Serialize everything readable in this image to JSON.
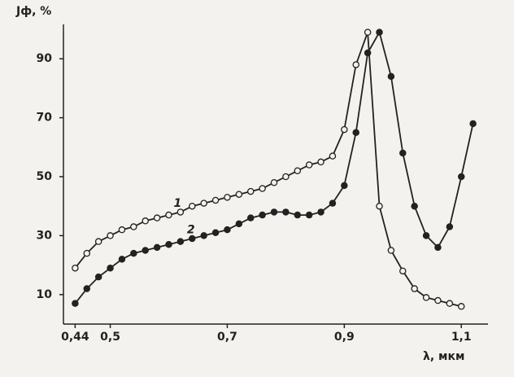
{
  "chart_data": {
    "type": "line",
    "y_label": "Jф, %",
    "x_label": "λ, мкм",
    "x": [
      0.44,
      0.46,
      0.48,
      0.5,
      0.52,
      0.54,
      0.56,
      0.58,
      0.6,
      0.62,
      0.64,
      0.66,
      0.68,
      0.7,
      0.72,
      0.74,
      0.76,
      0.78,
      0.8,
      0.82,
      0.84,
      0.86,
      0.88,
      0.9,
      0.92,
      0.94,
      0.96,
      0.98,
      1.0,
      1.02,
      1.04,
      1.06,
      1.08,
      1.1,
      1.12
    ],
    "series": [
      {
        "name": "1",
        "color": "#222222",
        "marker_fill": "#f4f2ee",
        "values": [
          19,
          24,
          28,
          30,
          32,
          33,
          35,
          36,
          37,
          38,
          40,
          41,
          42,
          43,
          44,
          45,
          46,
          48,
          50,
          52,
          54,
          55,
          57,
          66,
          88,
          99,
          40,
          25,
          18,
          12,
          9,
          8,
          7,
          6,
          null
        ]
      },
      {
        "name": "2",
        "color": "#222222",
        "marker_fill": "#222222",
        "values": [
          7,
          12,
          16,
          19,
          22,
          24,
          25,
          26,
          27,
          28,
          29,
          30,
          31,
          32,
          34,
          36,
          37,
          38,
          38,
          37,
          37,
          38,
          41,
          47,
          65,
          92,
          99,
          84,
          58,
          40,
          30,
          26,
          33,
          50,
          68
        ]
      }
    ],
    "xlim": [
      0.42,
      1.14
    ],
    "ylim": [
      0,
      100
    ],
    "xticks": [
      {
        "value": 0.44,
        "label": "0,44"
      },
      {
        "value": 0.5,
        "label": "0,5"
      },
      {
        "value": 0.7,
        "label": "0,7"
      },
      {
        "value": 0.9,
        "label": "0,9"
      },
      {
        "value": 1.1,
        "label": "1,1"
      }
    ],
    "yticks": [
      10,
      30,
      50,
      70,
      90
    ]
  }
}
